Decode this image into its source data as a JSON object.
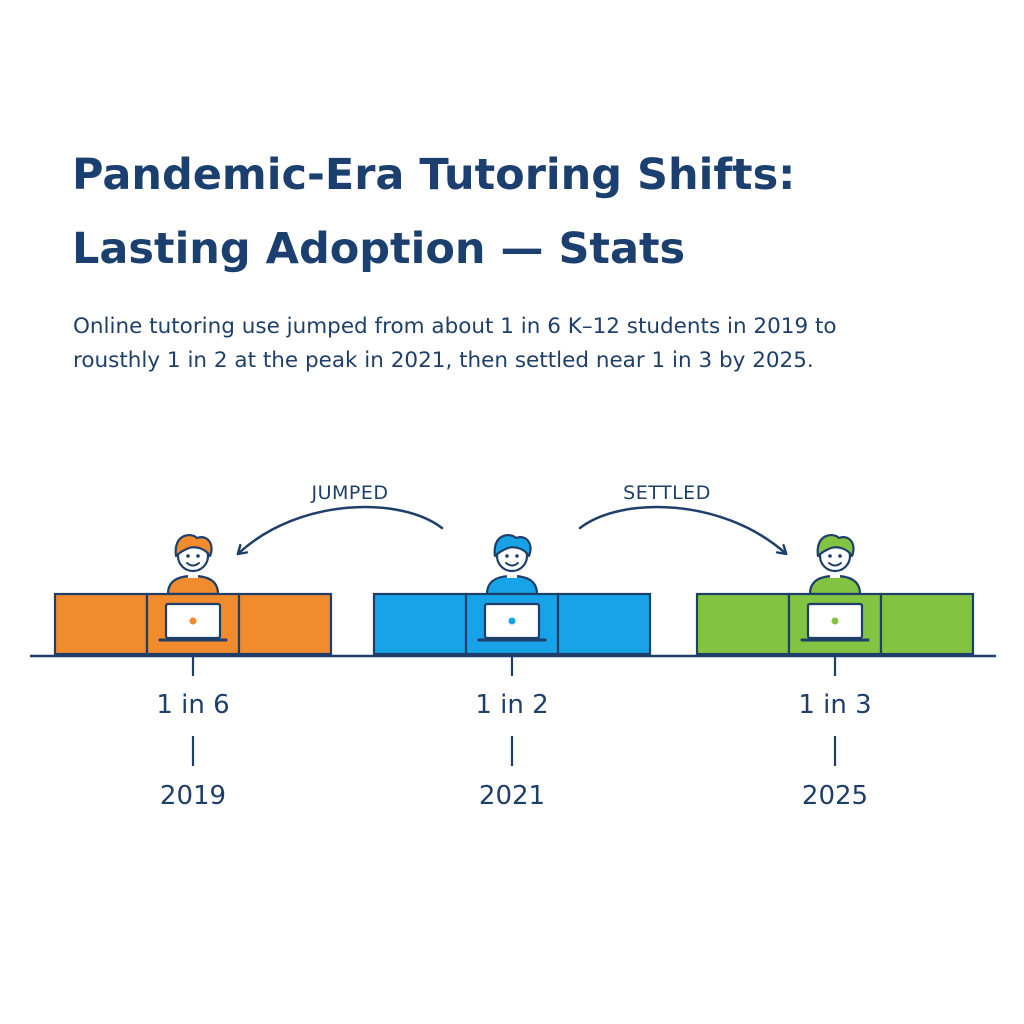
{
  "title": {
    "line1": "Pandemic-Era Tutoring Shifts:",
    "line2": "Lasting Adoption — Stats"
  },
  "subtitle": {
    "line1": "Online tutoring use jumped from about 1 in 6 K–12 students in 2019 to",
    "line2": "rousthly 1 in 2 at the peak in 2021, then settled near 1 in 3 by 2025."
  },
  "arrows": {
    "jumped_label": "JUMPED",
    "settled_label": "SETTLED"
  },
  "milestones": [
    {
      "ratio": "1 in 6",
      "year": "2019",
      "color": "#f28a2e",
      "share": 0.1667
    },
    {
      "ratio": "1 in 2",
      "year": "2021",
      "color": "#18a3e8",
      "share": 0.5
    },
    {
      "ratio": "1 in 3",
      "year": "2025",
      "color": "#82c341",
      "share": 0.3333
    }
  ],
  "colors": {
    "ink": "#1b3f6e",
    "outline": "#1f3f6b"
  }
}
